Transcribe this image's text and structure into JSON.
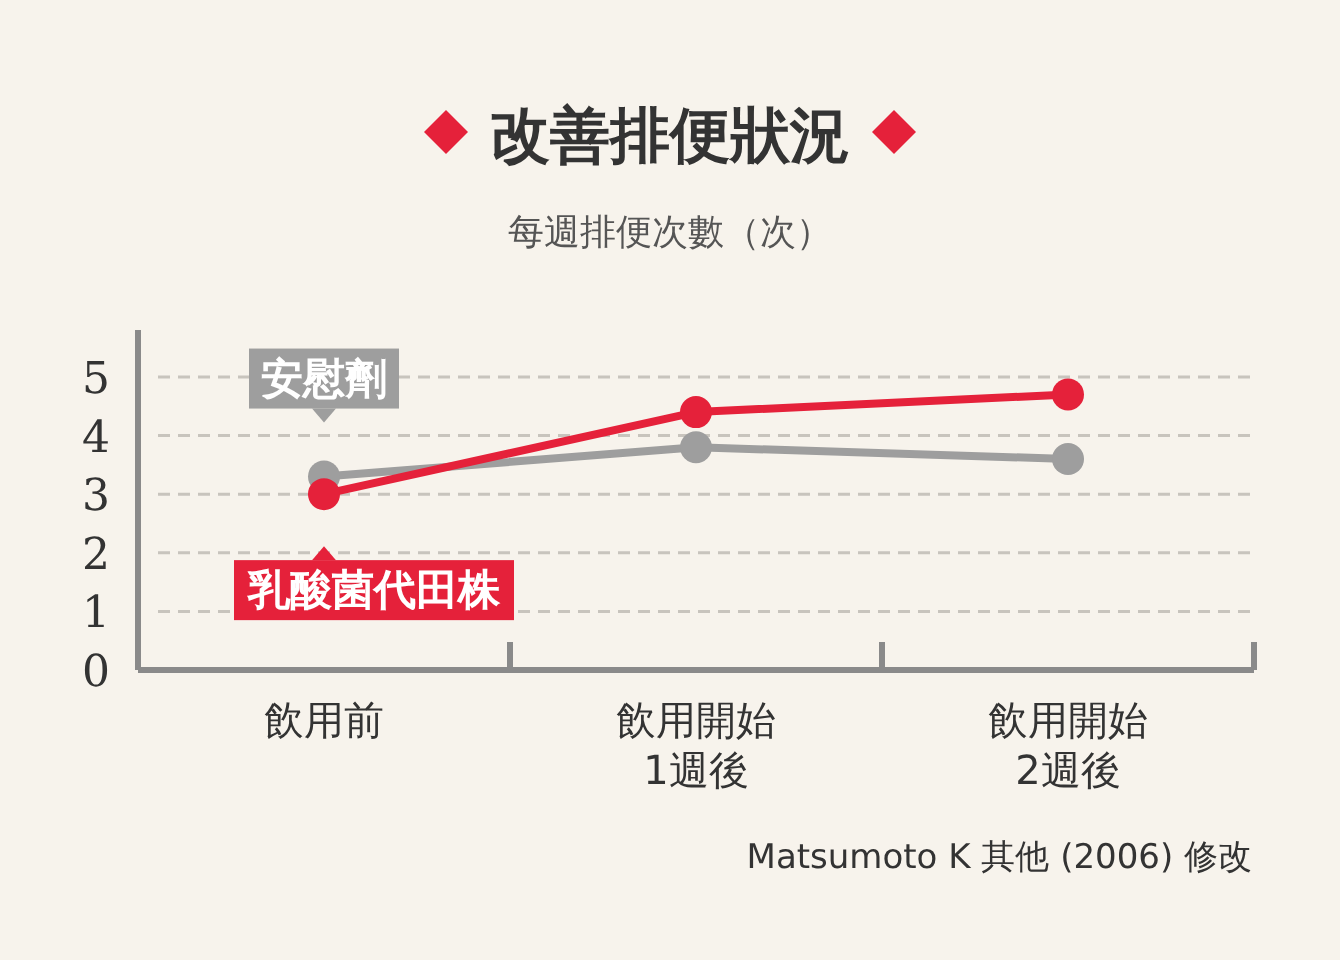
{
  "chart_data": {
    "type": "line",
    "title": "改善排便狀況",
    "subtitle": "每週排便次數（次）",
    "categories": [
      "飲用前",
      "飲用開始\n1週後",
      "飲用開始\n2週後"
    ],
    "series": [
      {
        "name": "安慰劑",
        "color": "#9e9e9e",
        "values": [
          3.3,
          3.8,
          3.6
        ]
      },
      {
        "name": "乳酸菌代田株",
        "color": "#e5213a",
        "values": [
          3.0,
          4.4,
          4.7
        ]
      }
    ],
    "ylim": [
      0,
      5.8
    ],
    "yticks": [
      0,
      1,
      2,
      3,
      4,
      5
    ],
    "grid": "y",
    "marker": "circle",
    "line_style": "solid",
    "legend": "left",
    "annotations": [
      "Matsumoto K 其他 (2006) 修改"
    ]
  }
}
